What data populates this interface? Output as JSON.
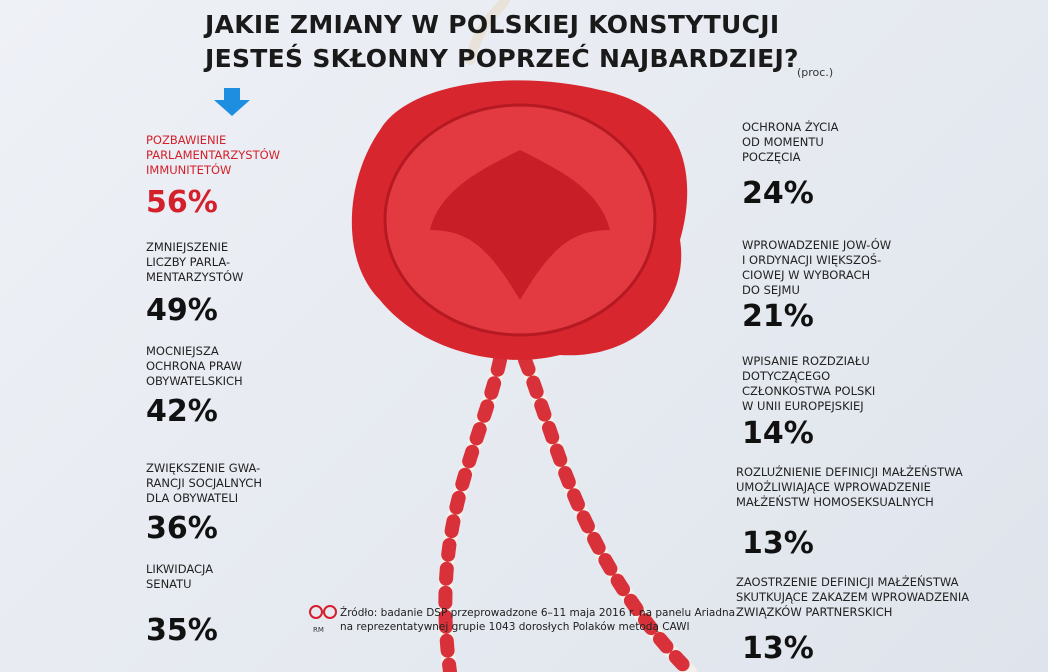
{
  "header": {
    "title": [
      "JAKIE ZMIANY W POLSKIEJ KONSTYTUCJI",
      "JESTEŚ SKŁONNY POPRZEĆ NAJBARDZIEJ?"
    ],
    "unit": "(proc.)"
  },
  "left_items": [
    {
      "label": [
        "POZBAWIENIE",
        "PARLAMENTARZYSTÓW",
        "IMMUNITETÓW"
      ],
      "value": "56%"
    },
    {
      "label": [
        "ZMNIEJSZENIE",
        "LICZBY PARLA-",
        "MENTARZYSTÓW"
      ],
      "value": "49%"
    },
    {
      "label": [
        "MOCNIEJSZA",
        "OCHRONA PRAW",
        "OBYWATELSKICH"
      ],
      "value": "42%"
    },
    {
      "label": [
        "ZWIĘKSZENIE GWA-",
        "RANCJI SOCJALNYCH",
        "DLA OBYWATELI"
      ],
      "value": "36%"
    },
    {
      "label": [
        "LIKWIDACJA",
        "SENATU"
      ],
      "value": "35%"
    }
  ],
  "right_items": [
    {
      "label": [
        "OCHRONA ŻYCIA",
        "OD MOMENTU",
        "POCZĘCIA"
      ],
      "value": "24%"
    },
    {
      "label": [
        "WPROWADZENIE JOW-ÓW",
        "I ORDYNACJI WIĘKSZOŚ-",
        "CIOWEJ W WYBORACH",
        "DO SEJMU"
      ],
      "value": "21%"
    },
    {
      "label": [
        "WPISANIE ROZDZIAŁU",
        "DOTYCZĄCEGO",
        "CZŁONKOSTWA POLSKI",
        "W UNII EUROPEJSKIEJ"
      ],
      "value": "14%"
    },
    {
      "label": [
        "ROZLUŹNIENIE DEFINICJI MAŁŻEŃSTWA",
        "UMOŻLIWIAJĄCE WPROWADZENIE",
        "MAŁŻEŃSTW HOMOSEKSUALNYCH"
      ],
      "value": "13%"
    },
    {
      "label": [
        "ZAOSTRZENIE DEFINICJI MAŁŻEŃSTWA",
        "SKUTKUJĄCE ZAKAZEM WPROWADZENIA",
        "ZWIĄZKÓW PARTNERSKICH"
      ],
      "value": "13%"
    }
  ],
  "source": {
    "logo": "RM",
    "lines": [
      "Źródło: badanie DSP przeprowadzone 6–11 maja 2016 r. na panelu Ariadna",
      "na reprezentatywnej grupie 1043 dorosłych Polaków metodą CAWI"
    ]
  }
}
